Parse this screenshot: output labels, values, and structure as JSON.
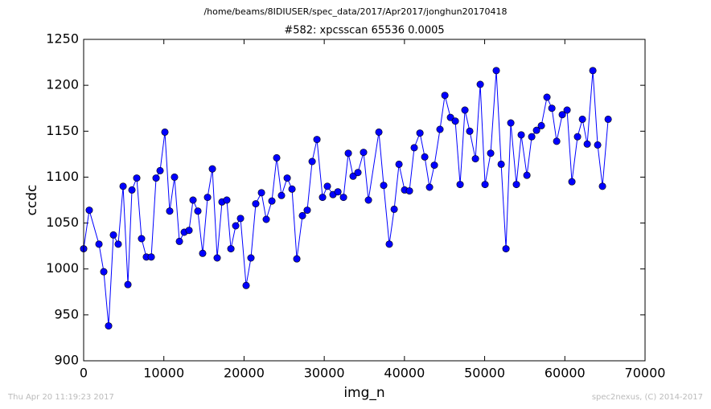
{
  "chart_data": {
    "type": "line",
    "suptitle": "/home/beams/8IDIUSER/spec_data/2017/Apr2017/jonghun20170418",
    "title": "#582: xpcsscan 65536 0.0005",
    "x_label": "img_n",
    "y_label": "ccdc",
    "footer_left": "Thu Apr 20 11:19:23 2017",
    "footer_right": "spec2nexus, (C) 2014-2017",
    "color": "#0000ff",
    "xlim": [
      0,
      70000
    ],
    "ylim": [
      900,
      1250
    ],
    "xticks": [
      0,
      10000,
      20000,
      30000,
      40000,
      50000,
      60000,
      70000
    ],
    "yticks": [
      900,
      950,
      1000,
      1050,
      1100,
      1150,
      1200,
      1250
    ],
    "x": [
      0,
      700,
      1910,
      2510,
      3110,
      3710,
      4310,
      4920,
      5520,
      6020,
      6620,
      7220,
      7820,
      8430,
      9030,
      9530,
      10130,
      10730,
      11330,
      11940,
      12540,
      13140,
      13640,
      14240,
      14840,
      15450,
      16050,
      16650,
      17250,
      17850,
      18360,
      18960,
      19560,
      20260,
      20860,
      21460,
      22170,
      22770,
      23470,
      24070,
      24670,
      25380,
      25980,
      26580,
      27280,
      27880,
      28490,
      29090,
      29790,
      30390,
      31090,
      31700,
      32400,
      33000,
      33600,
      34200,
      34900,
      35510,
      36810,
      37410,
      38110,
      38720,
      39320,
      40020,
      40620,
      41220,
      41930,
      42530,
      43130,
      43730,
      44430,
      45040,
      45740,
      46340,
      46940,
      47540,
      48140,
      48850,
      49450,
      50050,
      50750,
      51450,
      52060,
      52660,
      53260,
      53960,
      54560,
      55270,
      55870,
      56470,
      57070,
      57770,
      58380,
      58980,
      59680,
      60280,
      60880,
      61580,
      62190,
      62790,
      63490,
      64090,
      64690,
      65400
    ],
    "values": [
      1022,
      1064,
      1027,
      997,
      938,
      1037,
      1027,
      1090,
      983,
      1086,
      1099,
      1033,
      1013,
      1013,
      1099,
      1107,
      1149,
      1063,
      1100,
      1030,
      1040,
      1042,
      1075,
      1063,
      1017,
      1078,
      1109,
      1012,
      1073,
      1075,
      1022,
      1047,
      1055,
      982,
      1012,
      1071,
      1083,
      1054,
      1074,
      1121,
      1080,
      1099,
      1087,
      1011,
      1058,
      1064,
      1117,
      1141,
      1078,
      1090,
      1081,
      1084,
      1078,
      1126,
      1101,
      1105,
      1127,
      1075,
      1149,
      1091,
      1027,
      1065,
      1114,
      1086,
      1085,
      1132,
      1148,
      1122,
      1089,
      1113,
      1152,
      1189,
      1165,
      1161,
      1092,
      1173,
      1150,
      1120,
      1201,
      1092,
      1126,
      1216,
      1114,
      1022,
      1159,
      1092,
      1146,
      1102,
      1144,
      1151,
      1156,
      1187,
      1175,
      1139,
      1168,
      1173,
      1095,
      1144,
      1163,
      1136,
      1216,
      1135,
      1090,
      1163
    ]
  }
}
